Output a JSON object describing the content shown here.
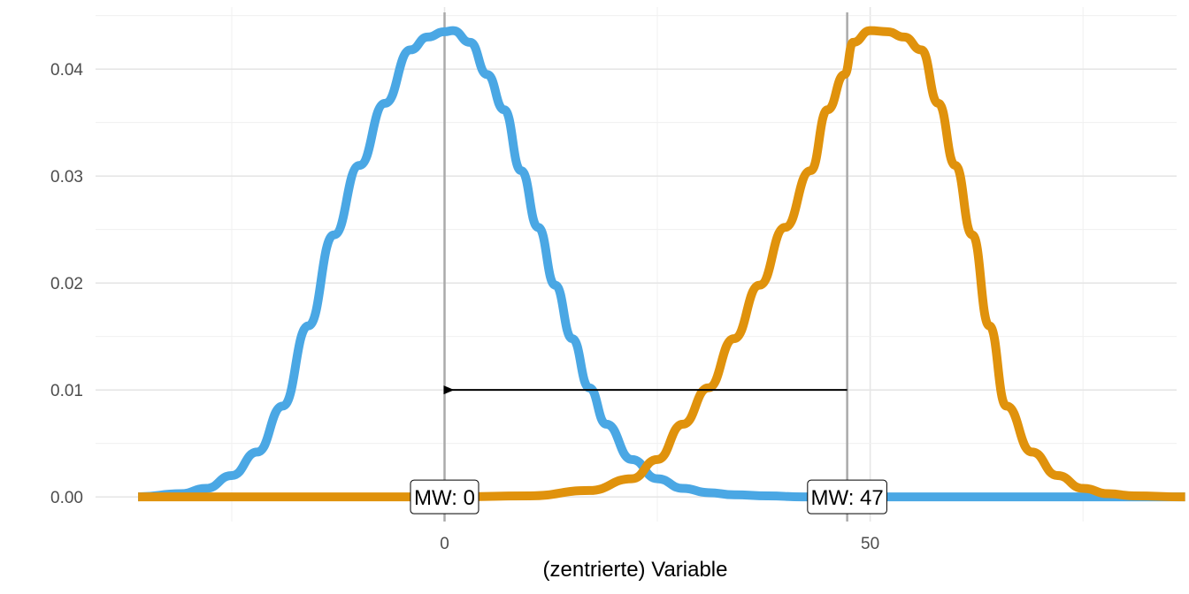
{
  "chart_data": {
    "type": "line",
    "title": "",
    "xlabel": "(zentrierte) Variable",
    "ylabel": "",
    "xlim": [
      -41,
      86
    ],
    "ylim": [
      -0.0023,
      0.0458
    ],
    "x_ticks": [
      0,
      50
    ],
    "x_tick_labels": [
      "0",
      "50"
    ],
    "y_ticks": [
      0,
      0.01,
      0.02,
      0.03,
      0.04
    ],
    "y_tick_labels": [
      "0.00",
      "0.01",
      "0.02",
      "0.03",
      "0.04"
    ],
    "grid": true,
    "series": [
      {
        "color": "#4aa7e4",
        "x": [
          -36,
          -31,
          -28,
          -25,
          -22,
          -19,
          -16,
          -13,
          -10,
          -7,
          -4,
          -2,
          0,
          1,
          3,
          5,
          7,
          9,
          11,
          13,
          15,
          17,
          19,
          22,
          25,
          28,
          31,
          34,
          38,
          42,
          47,
          52,
          60,
          70,
          80,
          87
        ],
        "y": [
          0,
          0.0003,
          0.0008,
          0.002,
          0.0042,
          0.0085,
          0.016,
          0.0245,
          0.031,
          0.0368,
          0.0418,
          0.043,
          0.0435,
          0.0436,
          0.0425,
          0.0395,
          0.0362,
          0.0305,
          0.0252,
          0.0198,
          0.0148,
          0.0102,
          0.0068,
          0.0035,
          0.0017,
          0.0008,
          0.0004,
          0.0002,
          0.0001,
          0,
          0,
          0,
          0,
          0,
          0,
          0
        ]
      },
      {
        "color": "#e0920c",
        "x": [
          -36,
          -20,
          -10,
          0,
          10,
          17,
          22,
          25,
          28,
          31,
          34,
          37,
          40,
          43,
          45,
          47,
          48,
          50,
          52,
          54,
          56,
          58,
          60,
          62,
          64,
          66,
          69,
          72,
          75,
          78,
          81,
          87
        ],
        "y": [
          0,
          0,
          0,
          0,
          0.0001,
          0.0006,
          0.0017,
          0.0035,
          0.0068,
          0.0102,
          0.0148,
          0.0198,
          0.0252,
          0.0305,
          0.0362,
          0.0395,
          0.0425,
          0.0436,
          0.0435,
          0.043,
          0.0418,
          0.0368,
          0.031,
          0.0245,
          0.016,
          0.0085,
          0.0042,
          0.002,
          0.0008,
          0.0003,
          0.0001,
          0
        ]
      }
    ],
    "reference_lines": [
      {
        "x": 0,
        "color": "#aaaaaa"
      },
      {
        "x": 47.3,
        "color": "#aaaaaa"
      }
    ],
    "arrow": {
      "x_from": 47.3,
      "x_to": 0,
      "y": 0.01,
      "color": "#000000"
    },
    "annotations": [
      {
        "x": 0,
        "y": 0,
        "text": "MW: 0"
      },
      {
        "x": 47.3,
        "y": 0,
        "text": "MW: 47"
      }
    ]
  }
}
